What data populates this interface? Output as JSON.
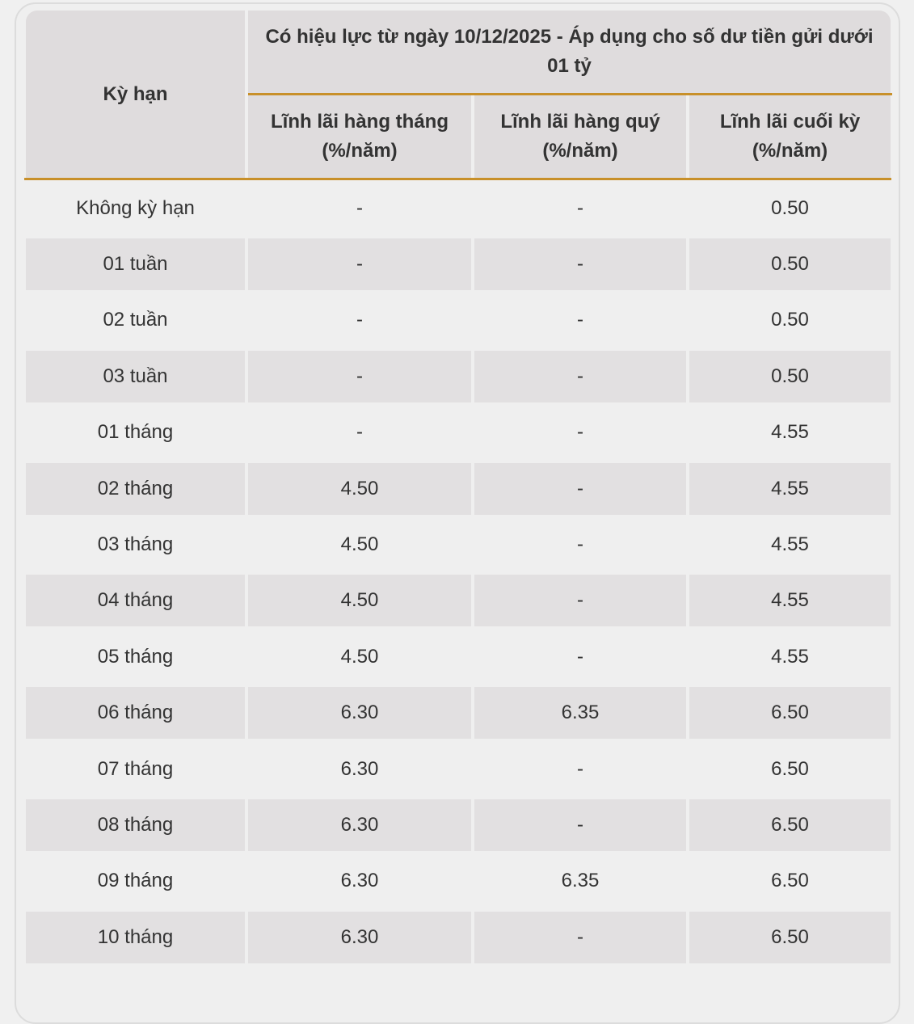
{
  "header": {
    "term_label": "Kỳ hạn",
    "effective_label": "Có hiệu lực từ ngày 10/12/2025 - Áp dụng cho số dư tiền gửi dưới 01 tỷ",
    "columns": [
      "Lĩnh lãi hàng tháng",
      "Lĩnh lãi hàng quý",
      "Lĩnh lãi cuối kỳ"
    ],
    "unit": "(%/năm)"
  },
  "colors": {
    "accent": "#c8902a",
    "header_bg": "#dfdcdd",
    "stripe_bg": "#e2e0e1"
  },
  "rows": [
    {
      "term": "Không kỳ hạn",
      "monthly": "-",
      "quarterly": "-",
      "end": "0.50"
    },
    {
      "term": "01 tuần",
      "monthly": "-",
      "quarterly": "-",
      "end": "0.50"
    },
    {
      "term": "02 tuần",
      "monthly": "-",
      "quarterly": "-",
      "end": "0.50"
    },
    {
      "term": "03 tuần",
      "monthly": "-",
      "quarterly": "-",
      "end": "0.50"
    },
    {
      "term": "01 tháng",
      "monthly": "-",
      "quarterly": "-",
      "end": "4.55"
    },
    {
      "term": "02 tháng",
      "monthly": "4.50",
      "quarterly": "-",
      "end": "4.55"
    },
    {
      "term": "03 tháng",
      "monthly": "4.50",
      "quarterly": "-",
      "end": "4.55"
    },
    {
      "term": "04 tháng",
      "monthly": "4.50",
      "quarterly": "-",
      "end": "4.55"
    },
    {
      "term": "05 tháng",
      "monthly": "4.50",
      "quarterly": "-",
      "end": "4.55"
    },
    {
      "term": "06 tháng",
      "monthly": "6.30",
      "quarterly": "6.35",
      "end": "6.50"
    },
    {
      "term": "07 tháng",
      "monthly": "6.30",
      "quarterly": "-",
      "end": "6.50"
    },
    {
      "term": "08 tháng",
      "monthly": "6.30",
      "quarterly": "-",
      "end": "6.50"
    },
    {
      "term": "09 tháng",
      "monthly": "6.30",
      "quarterly": "6.35",
      "end": "6.50"
    },
    {
      "term": "10 tháng",
      "monthly": "6.30",
      "quarterly": "-",
      "end": "6.50"
    }
  ]
}
